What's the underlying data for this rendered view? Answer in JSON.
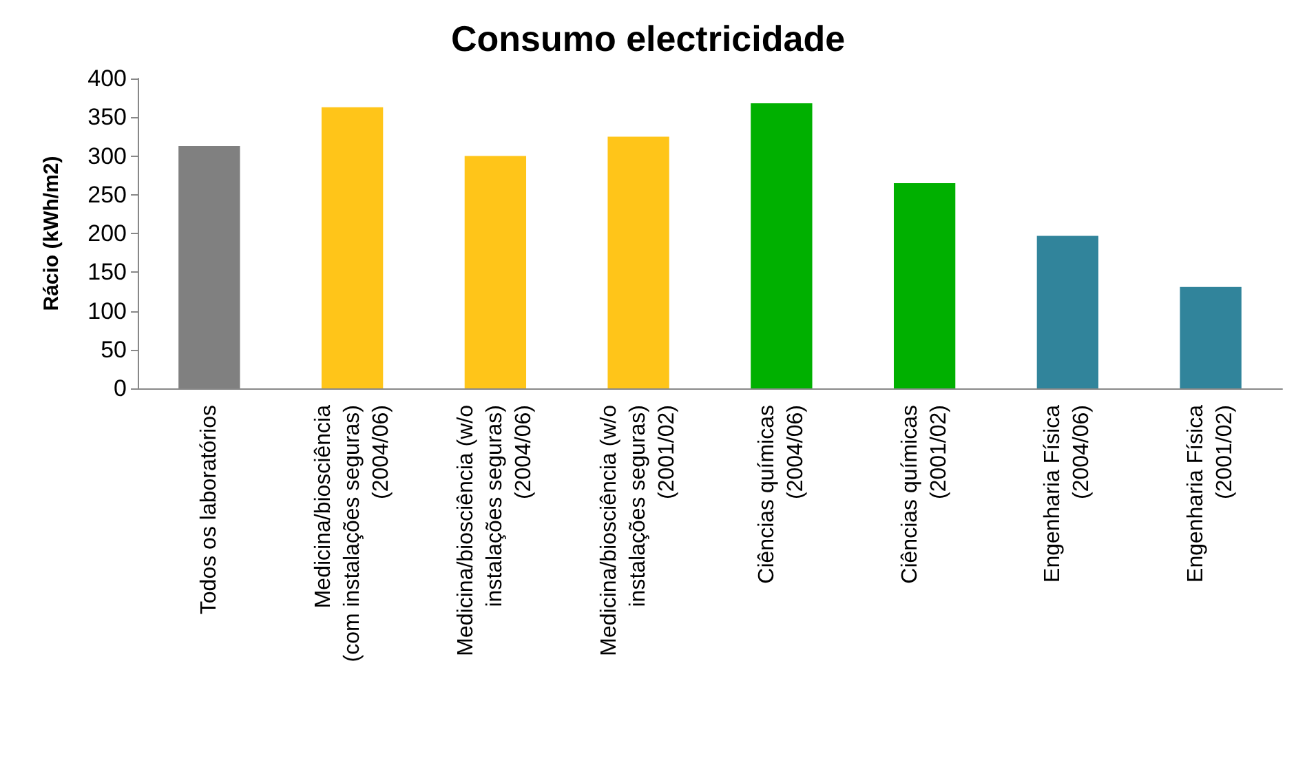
{
  "chart_data": {
    "type": "bar",
    "title": "Consumo electricidade",
    "ylabel": "Rácio (kWh/m2)",
    "categories": [
      "Todos os laboratórios",
      "Medicina/biosciência\n(com instalações seguras)\n(2004/06)",
      "Medicina/biosciência (w/o\ninstalações seguras)\n(2004/06)",
      "Medicina/biosciência (w/o\ninstalações seguras)\n(2001/02)",
      "Ciências químicas\n(2004/06)",
      "Ciências químicas\n(2001/02)",
      "Engenharia Física\n(2004/06)",
      "Engenharia Física\n(2001/02)"
    ],
    "values": [
      313,
      363,
      300,
      325,
      368,
      265,
      197,
      131
    ],
    "colors": [
      "#808080",
      "#ffc519",
      "#ffc519",
      "#ffc519",
      "#00b000",
      "#00b000",
      "#31849b",
      "#31849b"
    ],
    "ylim": [
      0,
      400
    ],
    "yticks": [
      0,
      50,
      100,
      150,
      200,
      250,
      300,
      350,
      400
    ],
    "grid": false
  }
}
